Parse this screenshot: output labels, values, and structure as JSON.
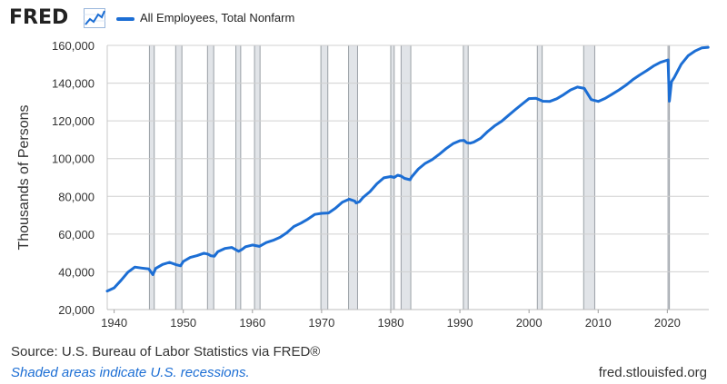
{
  "header": {
    "logo_text": "FRED",
    "logo_icon": "line-chart-icon",
    "series_legend": "All Employees, Total Nonfarm"
  },
  "colors": {
    "series": "#1c6ed4",
    "recession_fill": "#e1e4e8",
    "recession_stroke": "#9aa0a6",
    "grid": "#d0d0d0",
    "note": "#1c6ed4"
  },
  "chart_data": {
    "type": "line",
    "title": "",
    "xlabel": "",
    "ylabel": "Thousands of Persons",
    "xlim": [
      1939,
      2026
    ],
    "ylim": [
      20000,
      160000
    ],
    "grid": "horizontal",
    "x_ticks": [
      1940,
      1950,
      1960,
      1970,
      1980,
      1990,
      2000,
      2010,
      2020
    ],
    "y_ticks": [
      20000,
      40000,
      60000,
      80000,
      100000,
      120000,
      140000,
      160000
    ],
    "y_tick_labels": [
      "20,000",
      "40,000",
      "60,000",
      "80,000",
      "100,000",
      "120,000",
      "140,000",
      "160,000"
    ],
    "recessions": [
      [
        1945.1,
        1945.8
      ],
      [
        1948.9,
        1949.8
      ],
      [
        1953.5,
        1954.4
      ],
      [
        1957.6,
        1958.3
      ],
      [
        1960.3,
        1961.1
      ],
      [
        1969.9,
        1970.9
      ],
      [
        1973.9,
        1975.2
      ],
      [
        1980.0,
        1980.5
      ],
      [
        1981.5,
        1982.9
      ],
      [
        1990.5,
        1991.2
      ],
      [
        2001.2,
        2001.9
      ],
      [
        2007.9,
        2009.5
      ],
      [
        2020.1,
        2020.3
      ]
    ],
    "series": [
      {
        "name": "All Employees, Total Nonfarm",
        "x": [
          1939,
          1940,
          1941,
          1942,
          1943,
          1944,
          1945,
          1945.6,
          1946,
          1947,
          1948,
          1949,
          1949.6,
          1950,
          1951,
          1952,
          1953,
          1953.6,
          1954,
          1954.5,
          1955,
          1956,
          1957,
          1957.5,
          1958,
          1958.5,
          1959,
          1960,
          1961,
          1962,
          1963,
          1964,
          1965,
          1966,
          1967,
          1968,
          1969,
          1970,
          1971,
          1972,
          1973,
          1974,
          1974.8,
          1975,
          1975.5,
          1976,
          1977,
          1978,
          1979,
          1980,
          1980.5,
          1981,
          1981.5,
          1982,
          1982.8,
          1983,
          1984,
          1985,
          1986,
          1987,
          1988,
          1989,
          1990,
          1990.6,
          1991,
          1991.5,
          1992,
          1993,
          1994,
          1995,
          1996,
          1997,
          1998,
          1999,
          2000,
          2001,
          2002,
          2003,
          2004,
          2005,
          2006,
          2007,
          2008,
          2009,
          2010,
          2011,
          2012,
          2013,
          2014,
          2015,
          2016,
          2017,
          2018,
          2019,
          2020.1,
          2020.3,
          2020.6,
          2021,
          2022,
          2023,
          2024,
          2025,
          2025.9
        ],
        "values": [
          29800,
          31500,
          35500,
          39800,
          42500,
          42000,
          41500,
          38500,
          41800,
          43900,
          45000,
          43700,
          43200,
          45500,
          47600,
          48600,
          49900,
          49300,
          48500,
          48300,
          50700,
          52400,
          52900,
          51900,
          50900,
          51900,
          53300,
          54200,
          53500,
          55500,
          56700,
          58300,
          60800,
          64000,
          65800,
          67900,
          70400,
          71000,
          71200,
          73700,
          76900,
          78500,
          77500,
          76500,
          77200,
          79400,
          82500,
          86700,
          89800,
          90500,
          90000,
          91200,
          90700,
          89500,
          88800,
          90200,
          94500,
          97500,
          99500,
          102200,
          105300,
          107900,
          109500,
          109700,
          108400,
          108200,
          108700,
          110800,
          114300,
          117300,
          119700,
          122800,
          125900,
          128900,
          131800,
          132000,
          130400,
          130300,
          131700,
          133900,
          136400,
          137900,
          137200,
          131300,
          130300,
          131900,
          134100,
          136400,
          138900,
          141800,
          144300,
          146600,
          149100,
          151000,
          152300,
          130400,
          140700,
          143000,
          150000,
          154500,
          157000,
          158700,
          159000
        ]
      }
    ]
  },
  "footer": {
    "source_text": "Source: U.S. Bureau of Labor Statistics via FRED®",
    "note_text": "Shaded areas indicate U.S. recessions.",
    "url_text": "fred.stlouisfed.org"
  }
}
